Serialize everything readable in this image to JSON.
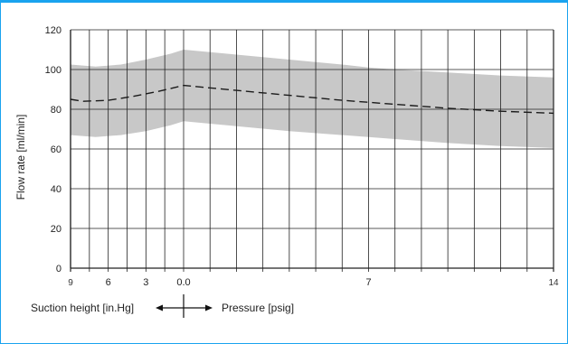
{
  "chart_data": {
    "type": "line",
    "ylabel": "Flow rate [ml/min]",
    "xlabel_left": "Suction height [in.Hg]",
    "xlabel_right": "Pressure [psig]",
    "ylim": [
      0,
      120
    ],
    "y_ticks": [
      "0",
      "20",
      "40",
      "60",
      "80",
      "100",
      "120"
    ],
    "x_tick_labels": [
      {
        "label": "9",
        "pos": -9,
        "size": "small"
      },
      {
        "label": "6",
        "pos": -6,
        "size": "normal"
      },
      {
        "label": "3",
        "pos": -3,
        "size": "normal"
      },
      {
        "label": "0.0",
        "pos": 0,
        "size": "normal"
      },
      {
        "label": "7",
        "pos": 7,
        "size": "normal"
      },
      {
        "label": "14",
        "pos": 14,
        "size": "small"
      }
    ],
    "x_suction_range": [
      -9,
      0
    ],
    "x_pressure_range": [
      0,
      14
    ],
    "series": [
      {
        "style": "dashed",
        "points": [
          [
            -9,
            85
          ],
          [
            -8,
            84
          ],
          [
            -6,
            84.5
          ],
          [
            -4,
            86.5
          ],
          [
            -2,
            89
          ],
          [
            0,
            92
          ],
          [
            2,
            89.5
          ],
          [
            4,
            87
          ],
          [
            6,
            84.5
          ],
          [
            8,
            82.5
          ],
          [
            10,
            80.5
          ],
          [
            12,
            79
          ],
          [
            14,
            78
          ]
        ]
      }
    ],
    "band": {
      "upper": [
        [
          -9,
          102.5
        ],
        [
          -7,
          101.5
        ],
        [
          -5,
          102.5
        ],
        [
          -3,
          105
        ],
        [
          -1,
          108
        ],
        [
          0,
          110
        ],
        [
          2,
          107.5
        ],
        [
          4,
          105
        ],
        [
          6,
          102.5
        ],
        [
          7,
          101
        ],
        [
          8,
          100
        ],
        [
          10,
          98.5
        ],
        [
          12,
          97
        ],
        [
          14,
          96
        ]
      ],
      "lower": [
        [
          -9,
          67
        ],
        [
          -7,
          66
        ],
        [
          -5,
          67
        ],
        [
          -3,
          69
        ],
        [
          -1,
          72
        ],
        [
          0,
          74
        ],
        [
          2,
          71.5
        ],
        [
          4,
          69
        ],
        [
          6,
          67
        ],
        [
          8,
          65
        ],
        [
          10,
          63
        ],
        [
          12,
          61.5
        ],
        [
          14,
          60.5
        ]
      ],
      "color": "#c8c8c8"
    },
    "grid": true,
    "colors": {
      "frame": "#1aa3ef",
      "grid": "#222222",
      "line": "#1a1a1a"
    }
  }
}
